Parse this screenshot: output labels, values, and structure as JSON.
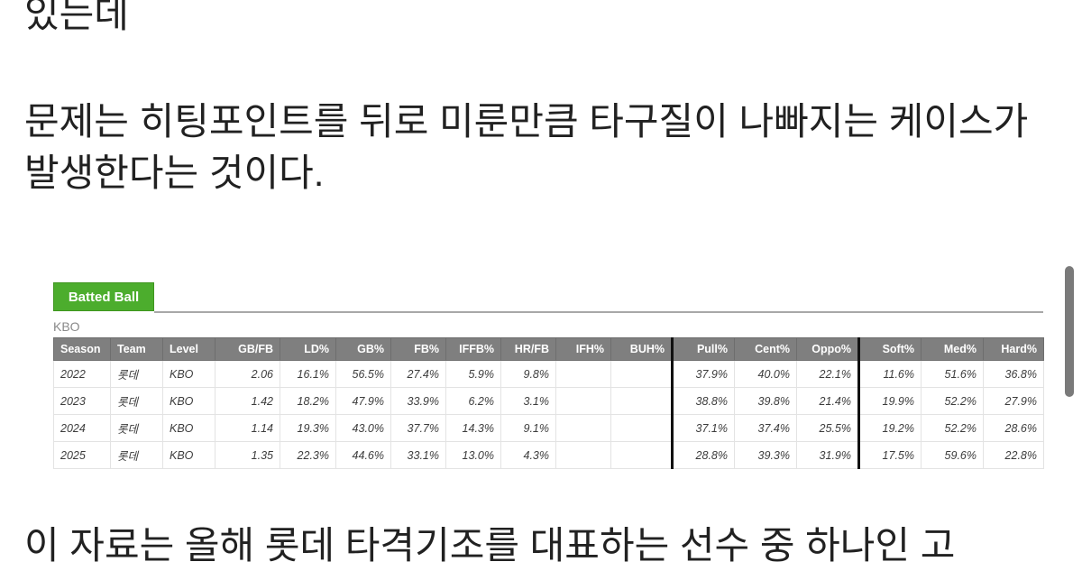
{
  "article": {
    "top_line": "있는데",
    "paragraph": "문제는 히팅포인트를 뒤로 미룬만큼 타구질이 나빠지는 케이스가 발생한다는 것이다.",
    "bottom_line": "이 자료는 올해 롯데 타격기조를 대표하는 선수 중 하나인 고"
  },
  "widget": {
    "tab_label": "Batted Ball",
    "tab_color": "#4cad2d",
    "header_bg": "#7f7f7f",
    "league_label": "KBO",
    "table": {
      "columns": [
        "Season",
        "Team",
        "Level",
        "GB/FB",
        "LD%",
        "GB%",
        "FB%",
        "IFFB%",
        "HR/FB",
        "IFH%",
        "BUH%",
        "Pull%",
        "Cent%",
        "Oppo%",
        "Soft%",
        "Med%",
        "Hard%"
      ],
      "rows": [
        [
          "2022",
          "롯데",
          "KBO",
          "2.06",
          "16.1%",
          "56.5%",
          "27.4%",
          "5.9%",
          "9.8%",
          "",
          "",
          "37.9%",
          "40.0%",
          "22.1%",
          "11.6%",
          "51.6%",
          "36.8%"
        ],
        [
          "2023",
          "롯데",
          "KBO",
          "1.42",
          "18.2%",
          "47.9%",
          "33.9%",
          "6.2%",
          "3.1%",
          "",
          "",
          "38.8%",
          "39.8%",
          "21.4%",
          "19.9%",
          "52.2%",
          "27.9%"
        ],
        [
          "2024",
          "롯데",
          "KBO",
          "1.14",
          "19.3%",
          "43.0%",
          "37.7%",
          "14.3%",
          "9.1%",
          "",
          "",
          "37.1%",
          "37.4%",
          "25.5%",
          "19.2%",
          "52.2%",
          "28.6%"
        ],
        [
          "2025",
          "롯데",
          "KBO",
          "1.35",
          "22.3%",
          "44.6%",
          "33.1%",
          "13.0%",
          "4.3%",
          "",
          "",
          "28.8%",
          "39.3%",
          "31.9%",
          "17.5%",
          "59.6%",
          "22.8%"
        ]
      ]
    }
  }
}
